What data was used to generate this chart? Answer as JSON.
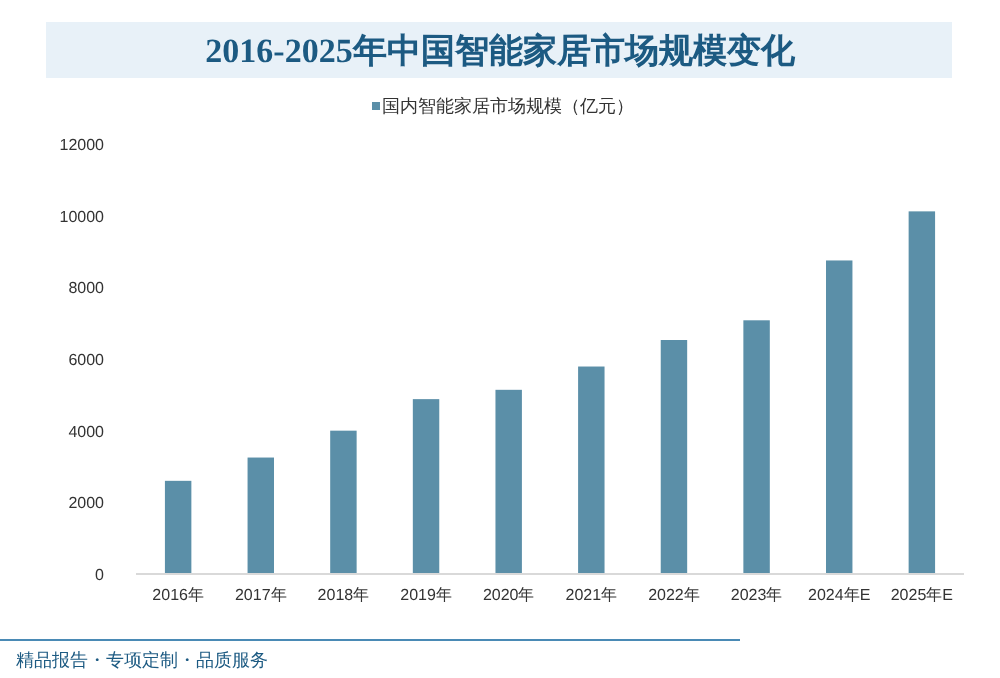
{
  "chart_data": {
    "type": "bar",
    "title": "2016-2025年中国智能家居市场规模变化",
    "categories": [
      "2016年",
      "2017年",
      "2018年",
      "2019年",
      "2020年",
      "2021年",
      "2022年",
      "2023年",
      "2024年E",
      "2025年E"
    ],
    "series": [
      {
        "name": "国内智能家居市场规模（亿元）",
        "color": "#5b8fa8",
        "values": [
          2600,
          3250,
          4000,
          4880,
          5140,
          5790,
          6530,
          7080,
          8750,
          10120
        ]
      }
    ],
    "ylim": [
      0,
      12000
    ],
    "yticks": [
      0,
      2000,
      4000,
      6000,
      8000,
      10000,
      12000
    ],
    "grid": false,
    "legend": "top",
    "annotations": [
      "精品报告・专项定制・品质服务"
    ]
  }
}
